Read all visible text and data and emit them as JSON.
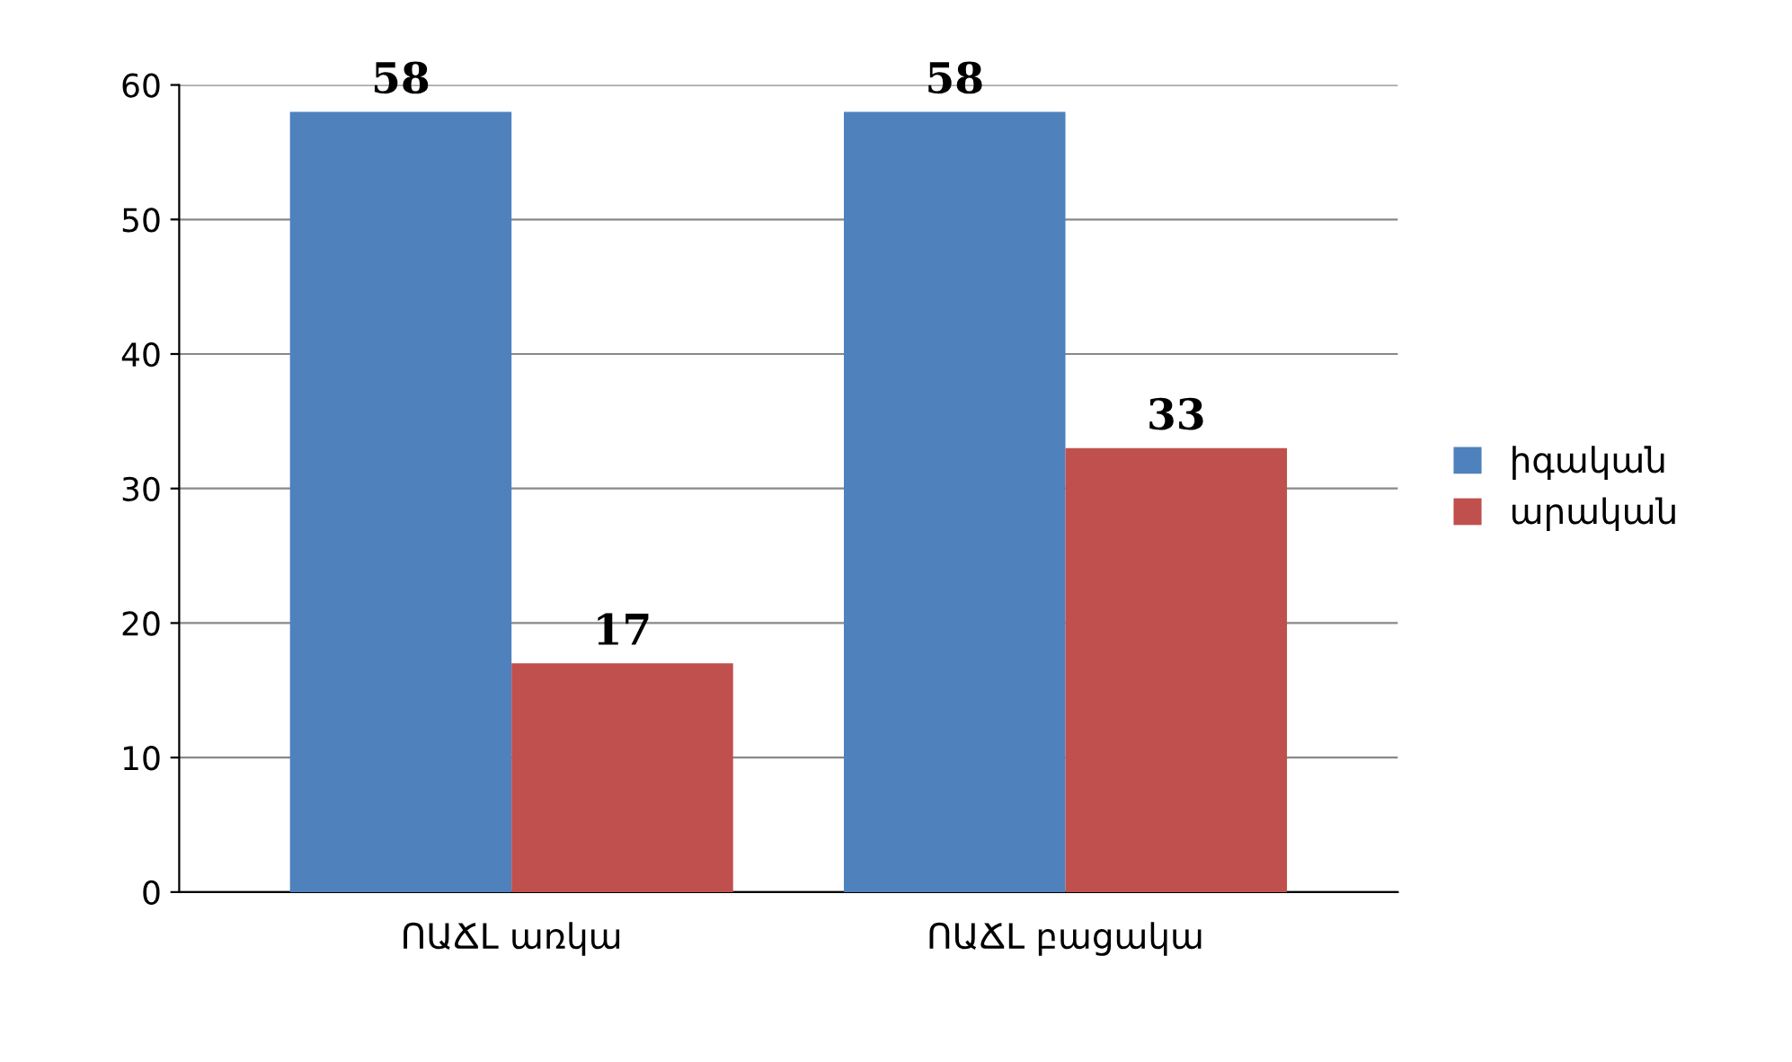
{
  "chart_data": {
    "type": "bar",
    "categories": [
      "ՈԱՃԼ առկա",
      "ՈԱՃԼ բացակա"
    ],
    "series": [
      {
        "name": "իգական",
        "color": "#4f81bd",
        "values": [
          58,
          58
        ]
      },
      {
        "name": "արական",
        "color": "#c0504d",
        "values": [
          17,
          33
        ]
      }
    ],
    "ylim": [
      0,
      60
    ],
    "yticks": [
      0,
      10,
      20,
      30,
      40,
      50,
      60
    ],
    "grid": "y",
    "legend": "right",
    "data_labels": true
  }
}
